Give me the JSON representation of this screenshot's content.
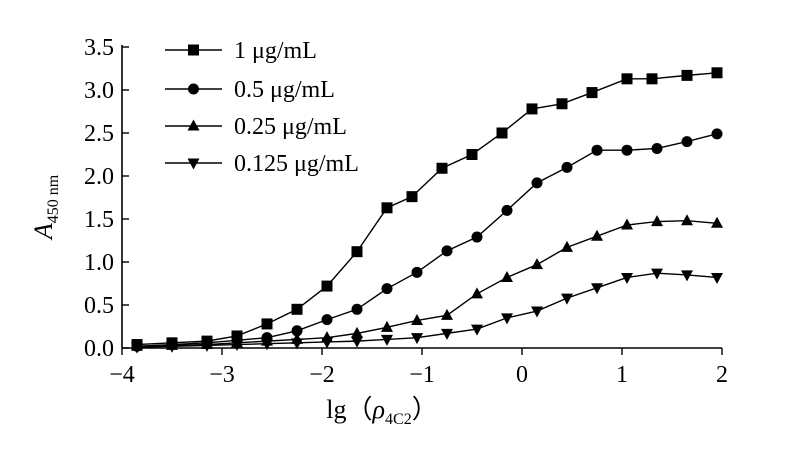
{
  "chart_data": {
    "type": "line",
    "x_axis": {
      "label_main": "lg（",
      "label_symbol": "ρ",
      "label_subscript": "4C2",
      "label_close": "）",
      "range": [
        -4,
        2
      ],
      "ticks": [
        -4,
        -3,
        -2,
        -1,
        0,
        1,
        2
      ],
      "tick_labels": [
        "−4",
        "−3",
        "−2",
        "−1",
        "0",
        "1",
        "2"
      ]
    },
    "y_axis": {
      "label_main": "A",
      "label_subscript": "450 nm",
      "range": [
        0,
        3.5
      ],
      "ticks": [
        0,
        0.5,
        1.0,
        1.5,
        2.0,
        2.5,
        3.0,
        3.5
      ],
      "tick_labels": [
        "0.0",
        "0.5",
        "1.0",
        "1.5",
        "2.0",
        "2.5",
        "3.0",
        "3.5"
      ]
    },
    "grid": false,
    "legend_position": "top-left",
    "series": [
      {
        "name": "1 μg/mL",
        "marker": "square",
        "x": [
          -3.85,
          -3.5,
          -3.15,
          -2.85,
          -2.55,
          -2.25,
          -1.95,
          -1.65,
          -1.35,
          -1.1,
          -0.8,
          -0.5,
          -0.2,
          0.1,
          0.4,
          0.7,
          1.05,
          1.3,
          1.65,
          1.95
        ],
        "y": [
          0.04,
          0.06,
          0.08,
          0.14,
          0.28,
          0.45,
          0.72,
          1.12,
          1.63,
          1.76,
          2.09,
          2.25,
          2.5,
          2.78,
          2.84,
          2.97,
          3.13,
          3.13,
          3.17,
          3.2
        ]
      },
      {
        "name": "0.5 μg/mL",
        "marker": "circle",
        "x": [
          -3.85,
          -3.5,
          -3.15,
          -2.85,
          -2.55,
          -2.25,
          -1.95,
          -1.65,
          -1.35,
          -1.05,
          -0.75,
          -0.45,
          -0.15,
          0.15,
          0.45,
          0.75,
          1.05,
          1.35,
          1.65,
          1.95
        ],
        "y": [
          0.02,
          0.04,
          0.06,
          0.09,
          0.12,
          0.2,
          0.33,
          0.45,
          0.69,
          0.88,
          1.13,
          1.29,
          1.6,
          1.92,
          2.1,
          2.3,
          2.3,
          2.32,
          2.4,
          2.49
        ]
      },
      {
        "name": "0.25 μg/mL",
        "marker": "triangle-up",
        "x": [
          -3.85,
          -3.5,
          -3.15,
          -2.85,
          -2.55,
          -2.25,
          -1.95,
          -1.65,
          -1.35,
          -1.05,
          -0.75,
          -0.45,
          -0.15,
          0.15,
          0.45,
          0.75,
          1.05,
          1.35,
          1.65,
          1.95
        ],
        "y": [
          0.02,
          0.03,
          0.04,
          0.06,
          0.08,
          0.1,
          0.12,
          0.17,
          0.24,
          0.32,
          0.38,
          0.63,
          0.82,
          0.97,
          1.17,
          1.3,
          1.43,
          1.47,
          1.48,
          1.45
        ]
      },
      {
        "name": "0.125 μg/mL",
        "marker": "triangle-down",
        "x": [
          -3.85,
          -3.5,
          -3.15,
          -2.85,
          -2.55,
          -2.25,
          -1.95,
          -1.65,
          -1.35,
          -1.05,
          -0.75,
          -0.45,
          -0.15,
          0.15,
          0.45,
          0.75,
          1.05,
          1.35,
          1.65,
          1.95
        ],
        "y": [
          0.01,
          0.02,
          0.03,
          0.04,
          0.05,
          0.06,
          0.07,
          0.08,
          0.1,
          0.12,
          0.17,
          0.22,
          0.35,
          0.43,
          0.58,
          0.7,
          0.82,
          0.87,
          0.85,
          0.82
        ]
      }
    ]
  }
}
